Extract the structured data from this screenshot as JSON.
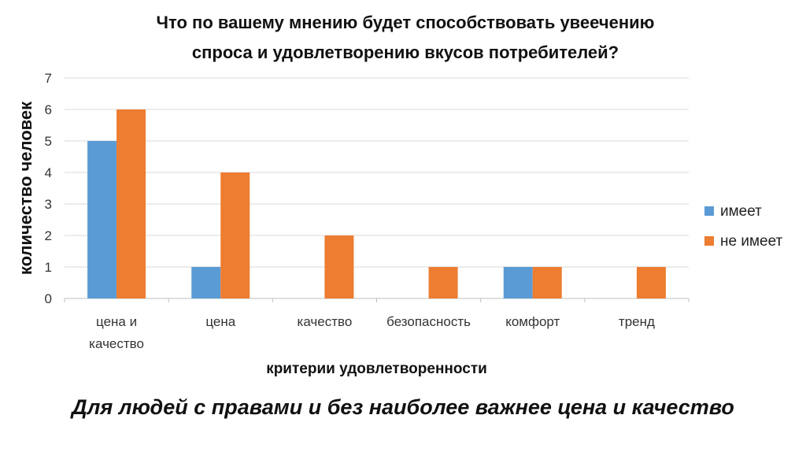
{
  "chart_data": {
    "type": "bar",
    "title_lines": [
      "Что по вашему мнению будет способствовать увеечению",
      "спроса и удовлетворению вкусов потребителей?"
    ],
    "xlabel": "критерии удовлетворенности",
    "ylabel": "количество человек",
    "categories": [
      [
        "цена и",
        "качество"
      ],
      [
        "цена"
      ],
      [
        "качество"
      ],
      [
        "безопасность"
      ],
      [
        "комфорт"
      ],
      [
        "тренд"
      ]
    ],
    "series": [
      {
        "name": "имеет",
        "color": "#5b9bd5",
        "values": [
          5,
          1,
          0,
          0,
          1,
          0
        ]
      },
      {
        "name": "не имеет",
        "color": "#ed7d31",
        "values": [
          6,
          4,
          2,
          1,
          1,
          1
        ]
      }
    ],
    "ylim": [
      0,
      7
    ],
    "yticks": [
      "0",
      "1",
      "2",
      "3",
      "4",
      "5",
      "6",
      "7"
    ],
    "grid": true,
    "legend_position": "right"
  },
  "caption": "Для людей с правами и без наиболее важнее цена и качество"
}
